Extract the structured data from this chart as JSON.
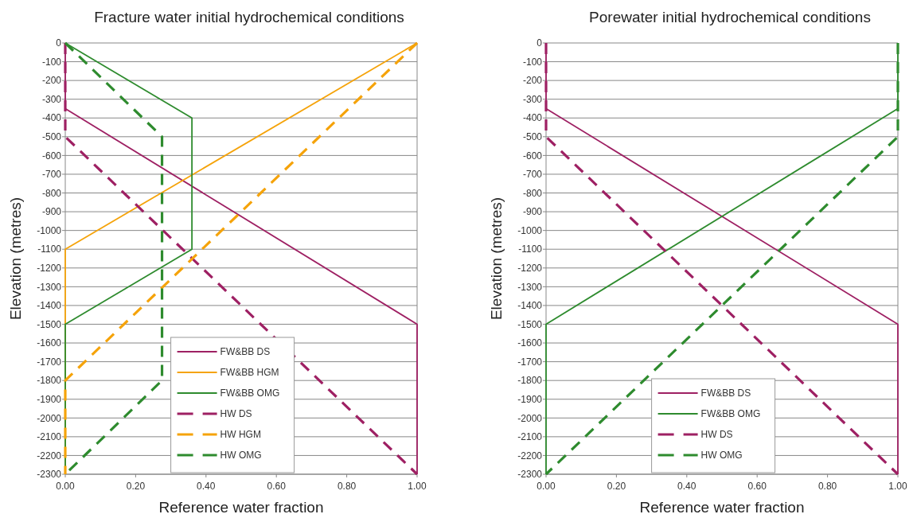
{
  "chart_data": [
    {
      "type": "line",
      "title": "Fracture water initial hydrochemical conditions",
      "xlabel": "Reference water fraction",
      "ylabel": "Elevation (metres)",
      "xlim": [
        0,
        1
      ],
      "ylim": [
        -2300,
        0
      ],
      "xticks": [
        {
          "value": 0,
          "label": "0.00"
        },
        {
          "value": 0.2,
          "label": "0.20"
        },
        {
          "value": 0.4,
          "label": "0.40"
        },
        {
          "value": 0.6,
          "label": "0.60"
        },
        {
          "value": 0.8,
          "label": "0.80"
        },
        {
          "value": 1,
          "label": "1.00"
        }
      ],
      "yticks": [
        0,
        -100,
        -200,
        -300,
        -400,
        -500,
        -600,
        -700,
        -800,
        -900,
        -1000,
        -1100,
        -1200,
        -1300,
        -1400,
        -1500,
        -1600,
        -1700,
        -1800,
        -1900,
        -2000,
        -2100,
        -2200,
        -2300
      ],
      "grid": "y",
      "legend": "bottom",
      "marker": "none",
      "series": [
        {
          "name": "FW&BB DS",
          "color": "#9e2063",
          "line_style": "solid",
          "x": [
            0,
            0,
            1,
            1
          ],
          "values": [
            0,
            -350,
            -1500,
            -2300
          ]
        },
        {
          "name": "FW&BB HGM",
          "color": "#f5a30a",
          "line_style": "solid",
          "x": [
            1,
            0,
            0
          ],
          "values": [
            0,
            -1100,
            -2300
          ]
        },
        {
          "name": "FW&BB OMG",
          "color": "#2e8b2e",
          "line_style": "solid",
          "x": [
            0,
            0.36,
            0.36,
            0,
            0
          ],
          "values": [
            0,
            -400,
            -1100,
            -1500,
            -2300
          ]
        },
        {
          "name": "HW DS",
          "color": "#9e2063",
          "line_style": "dashed",
          "x": [
            0,
            0,
            1
          ],
          "values": [
            0,
            -500,
            -2300
          ]
        },
        {
          "name": "HW HGM",
          "color": "#f5a30a",
          "line_style": "dashed",
          "x": [
            1,
            0,
            0
          ],
          "values": [
            0,
            -1800,
            -2300
          ]
        },
        {
          "name": "HW OMG",
          "color": "#2e8b2e",
          "line_style": "dashed",
          "x": [
            0,
            0.275,
            0.275,
            0
          ],
          "values": [
            0,
            -500,
            -1800,
            -2300
          ]
        }
      ]
    },
    {
      "type": "line",
      "title": "Porewater initial hydrochemical conditions",
      "xlabel": "Reference water fraction",
      "ylabel": "Elevation (metres)",
      "xlim": [
        0,
        1
      ],
      "ylim": [
        -2300,
        0
      ],
      "xticks": [
        {
          "value": 0,
          "label": "0.00"
        },
        {
          "value": 0.2,
          "label": "0.20"
        },
        {
          "value": 0.4,
          "label": "0.40"
        },
        {
          "value": 0.6,
          "label": "0.60"
        },
        {
          "value": 0.8,
          "label": "0.80"
        },
        {
          "value": 1,
          "label": "1.00"
        }
      ],
      "yticks": [
        0,
        -100,
        -200,
        -300,
        -400,
        -500,
        -600,
        -700,
        -800,
        -900,
        -1000,
        -1100,
        -1200,
        -1300,
        -1400,
        -1500,
        -1600,
        -1700,
        -1800,
        -1900,
        -2000,
        -2100,
        -2200,
        -2300
      ],
      "grid": "y",
      "legend": "bottom",
      "marker": "none",
      "series": [
        {
          "name": "FW&BB DS",
          "color": "#9e2063",
          "line_style": "solid",
          "x": [
            0,
            0,
            1,
            1
          ],
          "values": [
            0,
            -350,
            -1500,
            -2300
          ]
        },
        {
          "name": "FW&BB OMG",
          "color": "#2e8b2e",
          "line_style": "solid",
          "x": [
            1,
            1,
            0,
            0
          ],
          "values": [
            0,
            -350,
            -1500,
            -2300
          ]
        },
        {
          "name": "HW DS",
          "color": "#9e2063",
          "line_style": "dashed",
          "x": [
            0,
            0,
            1
          ],
          "values": [
            0,
            -500,
            -2300
          ]
        },
        {
          "name": "HW OMG",
          "color": "#2e8b2e",
          "line_style": "dashed",
          "x": [
            1,
            1,
            0
          ],
          "values": [
            0,
            -500,
            -2300
          ]
        }
      ]
    }
  ]
}
